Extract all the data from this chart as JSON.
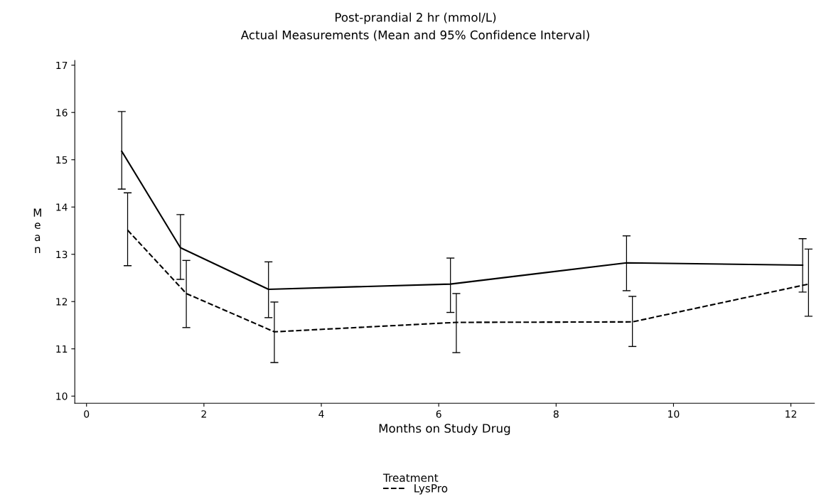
{
  "chart_data": {
    "type": "line",
    "title": "Post-prandial 2 hr (mmol/L)",
    "subtitle": "Actual Measurements (Mean and 95% Confidence Interval)",
    "xlabel": "Months on Study Drug",
    "ylabel": "Mean",
    "legend_title": "Treatment",
    "legend": "bottom",
    "grid": false,
    "marker": "none",
    "xlim": [
      -0.2,
      12.4
    ],
    "xticks": [
      0,
      2,
      4,
      6,
      8,
      10,
      12
    ],
    "ylim": [
      9.85,
      17.1
    ],
    "yticks": [
      10,
      11,
      12,
      13,
      14,
      15,
      16,
      17
    ],
    "series": [
      {
        "color": "#000000",
        "line_style": "solid",
        "x": [
          0.6,
          1.6,
          3.1,
          6.2,
          9.2,
          12.2
        ],
        "values": [
          15.18,
          13.14,
          12.26,
          12.37,
          12.82,
          12.77
        ],
        "errors": [
          [
            14.38,
            16.02
          ],
          [
            12.47,
            13.84
          ],
          [
            11.66,
            12.84
          ],
          [
            11.77,
            12.92
          ],
          [
            12.23,
            13.39
          ],
          [
            12.2,
            13.33
          ]
        ]
      },
      {
        "name": "LysPro",
        "color": "#000000",
        "line_style": "dashed",
        "x": [
          0.7,
          1.7,
          3.2,
          6.3,
          9.3,
          12.3
        ],
        "values": [
          13.51,
          12.17,
          11.36,
          11.56,
          11.57,
          12.37
        ],
        "errors": [
          [
            12.76,
            14.3
          ],
          [
            11.45,
            12.87
          ],
          [
            10.71,
            11.99
          ],
          [
            10.92,
            12.17
          ],
          [
            11.05,
            12.11
          ],
          [
            11.69,
            13.11
          ]
        ]
      }
    ]
  }
}
